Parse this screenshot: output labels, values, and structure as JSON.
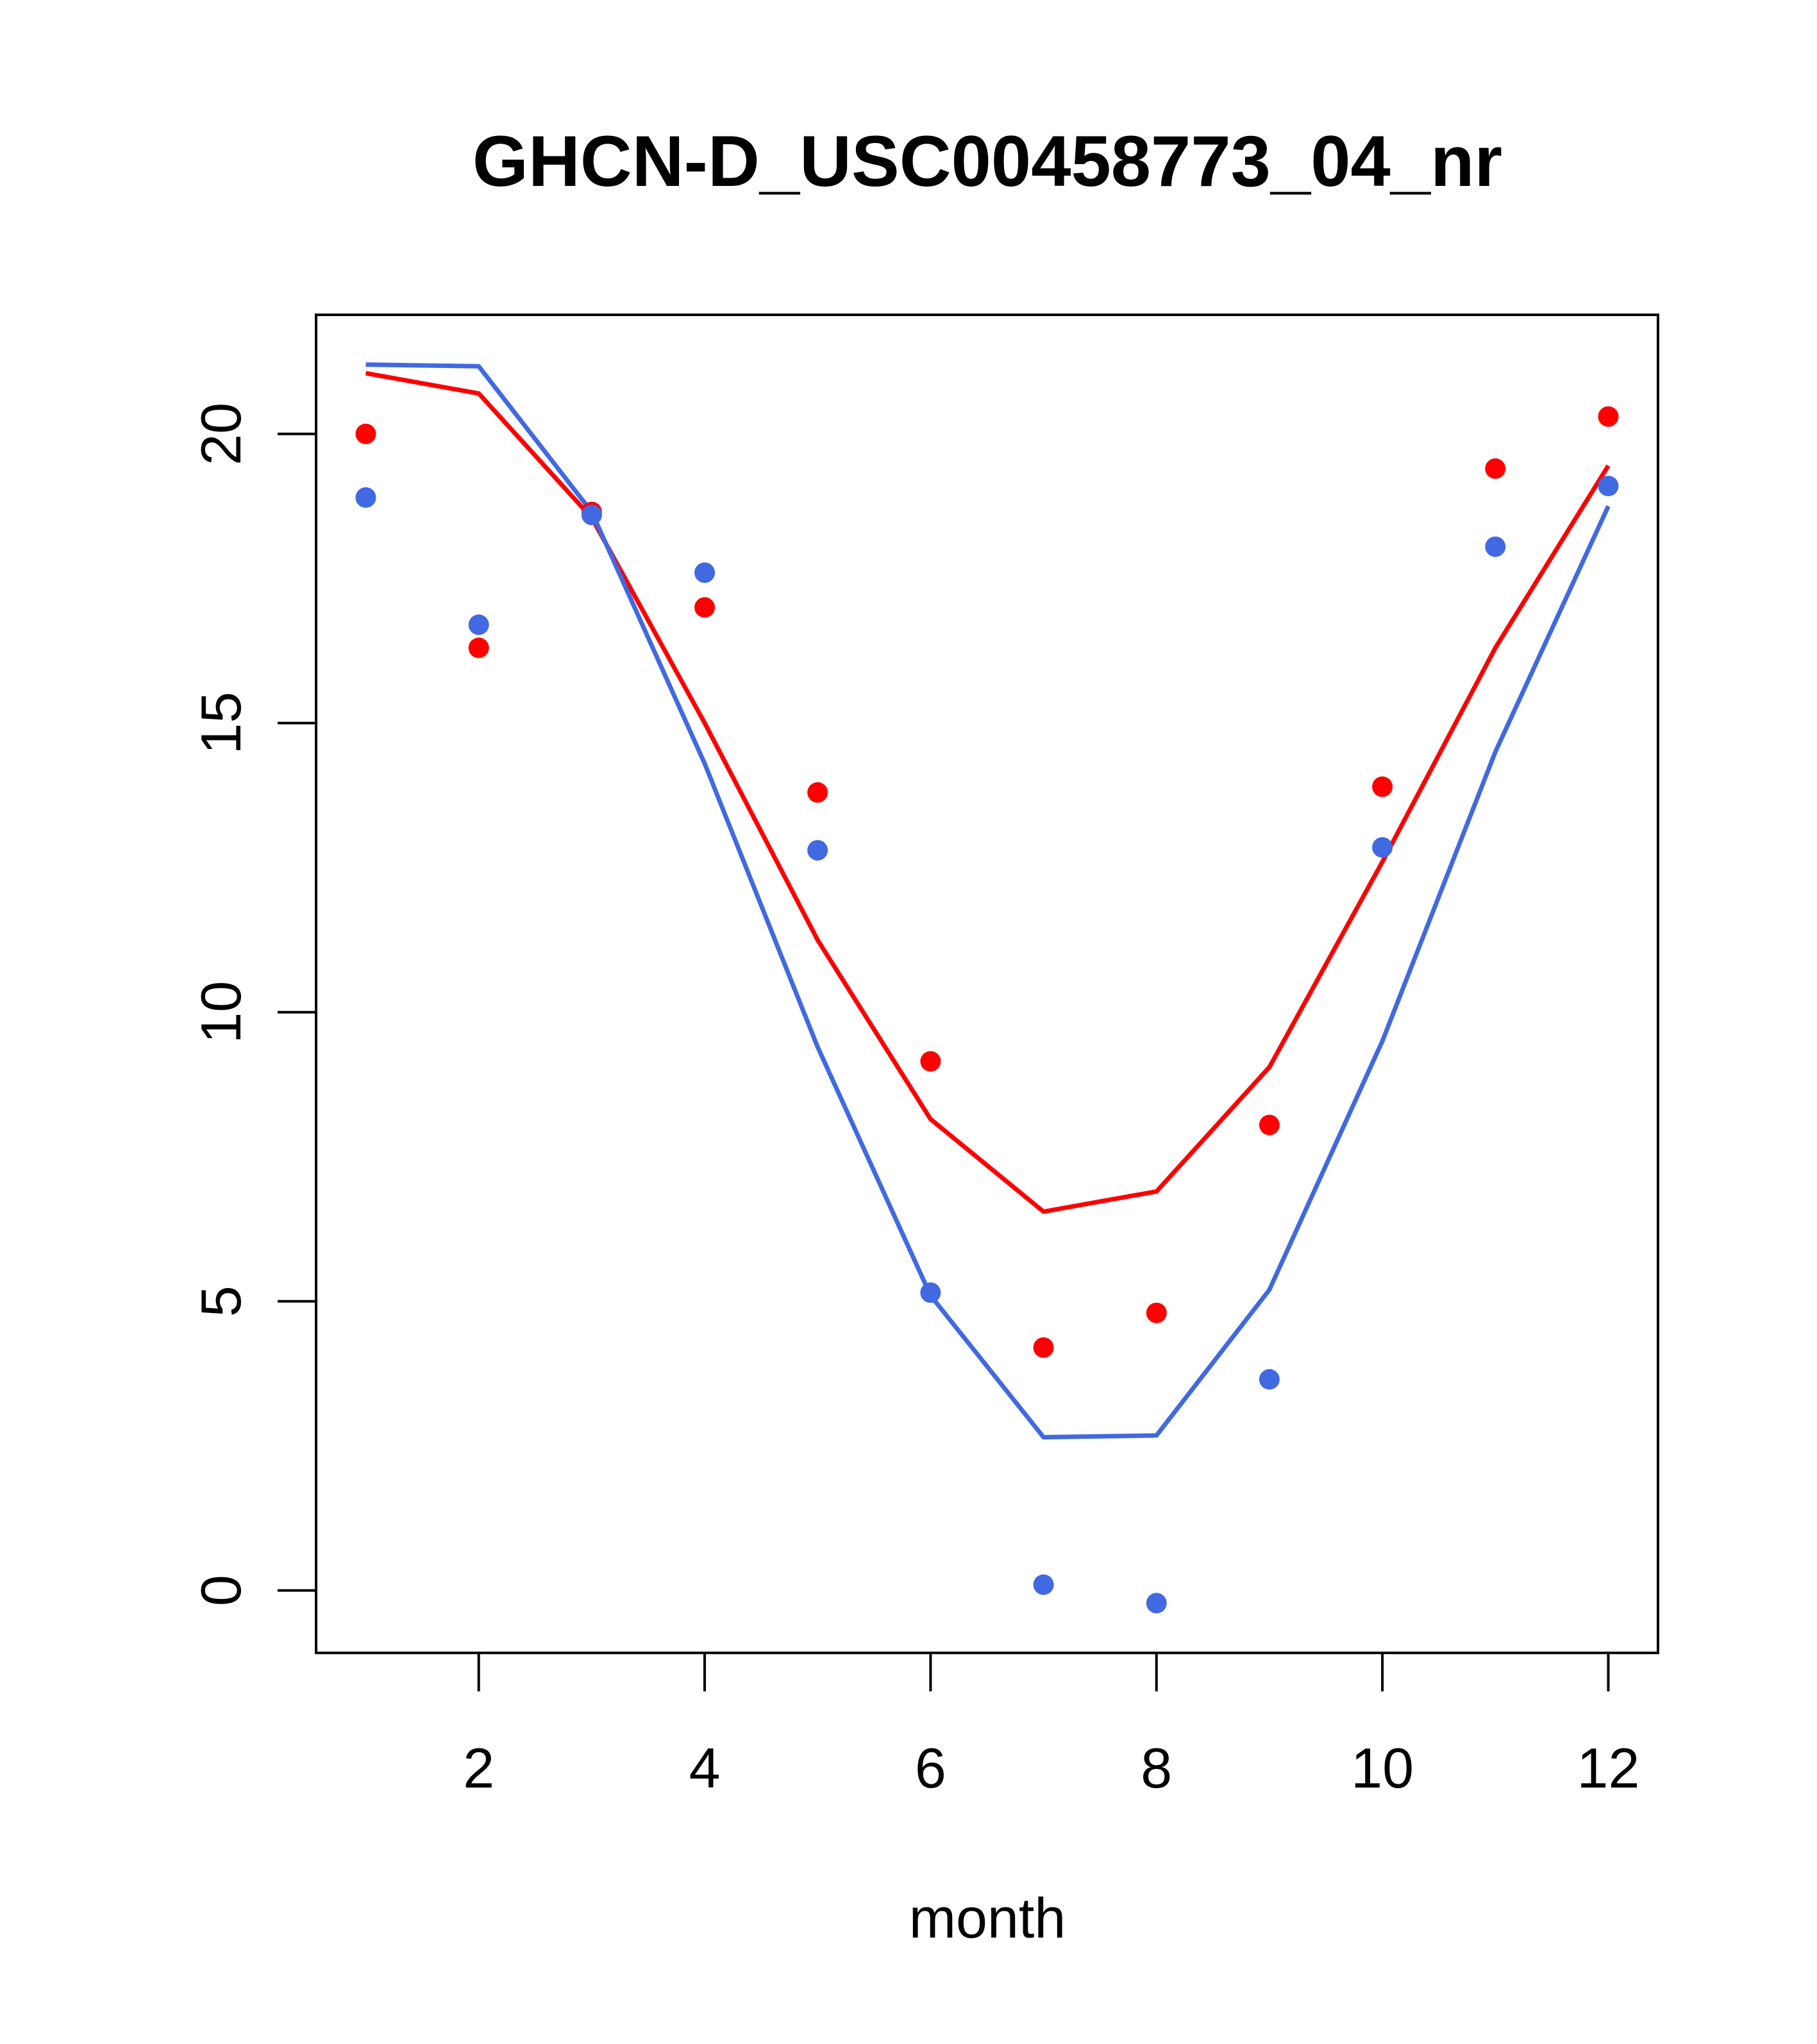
{
  "chart_data": {
    "type": "line",
    "title": "GHCN-D_USC00458773_04_nr",
    "xlabel": "month",
    "ylabel": "",
    "xlim": [
      0.56,
      12.44
    ],
    "ylim": [
      -1.08,
      22.06
    ],
    "x_ticks": [
      2,
      4,
      6,
      8,
      10,
      12
    ],
    "y_ticks": [
      0,
      5,
      10,
      15,
      20
    ],
    "x": [
      1,
      2,
      3,
      4,
      5,
      6,
      7,
      8,
      9,
      10,
      11,
      12
    ],
    "series": [
      {
        "name": "red-line",
        "kind": "line",
        "color": "#ff0000",
        "values": [
          21.05,
          20.7,
          18.55,
          15.0,
          11.25,
          8.15,
          6.55,
          6.9,
          9.05,
          12.6,
          16.3,
          19.45
        ]
      },
      {
        "name": "blue-line",
        "kind": "line",
        "color": "#4169e1",
        "values": [
          21.2,
          21.17,
          18.65,
          14.3,
          9.4,
          5.1,
          2.65,
          2.68,
          5.2,
          9.5,
          14.5,
          18.75
        ]
      },
      {
        "name": "red-points",
        "kind": "points",
        "color": "#ff0000",
        "values": [
          20.0,
          16.3,
          18.65,
          17.0,
          13.8,
          9.15,
          4.2,
          4.8,
          8.05,
          13.9,
          19.4,
          20.3
        ]
      },
      {
        "name": "blue-points",
        "kind": "points",
        "color": "#4169e1",
        "values": [
          18.9,
          16.7,
          18.6,
          17.6,
          12.8,
          5.15,
          0.1,
          -0.22,
          3.65,
          12.85,
          18.05,
          19.1
        ]
      }
    ]
  }
}
